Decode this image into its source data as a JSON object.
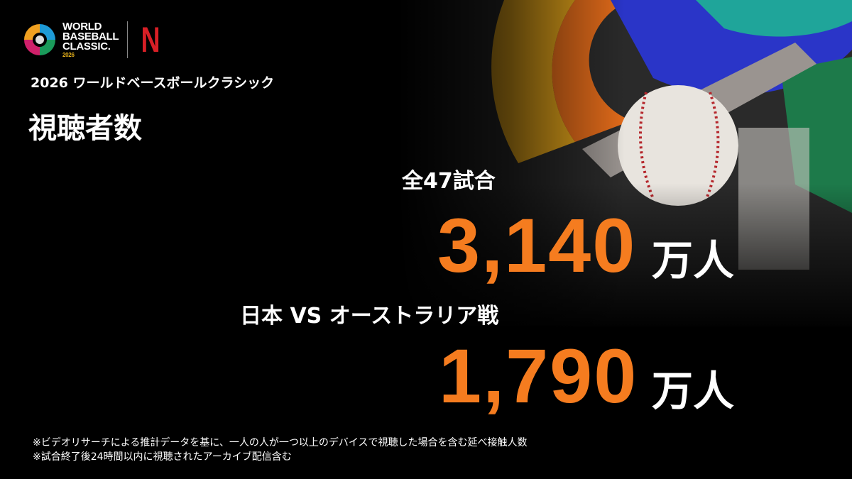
{
  "logo": {
    "wbc_lines": [
      "WORLD",
      "BASEBALL",
      "CLASSIC."
    ],
    "wbc_year": "2026",
    "partner": "N"
  },
  "subtitle": "2026 ワールドベースボールクラシック",
  "title": "視聴者数",
  "stats": [
    {
      "label": "全47試合",
      "value": "3,140",
      "unit": "万人"
    },
    {
      "label": "日本 VS オーストラリア戦",
      "value": "1,790",
      "unit": "万人"
    }
  ],
  "notes": [
    "※ビデオリサーチによる推計データを基に、一人の人が一つ以上のデバイスで視聴した場合を含む延べ接触人数",
    "※試合終了後24時間以内に視聴されたアーカイブ配信含む"
  ],
  "colors": {
    "accent": "#f57c1f",
    "netflix": "#d81f26",
    "background": "#000000"
  }
}
